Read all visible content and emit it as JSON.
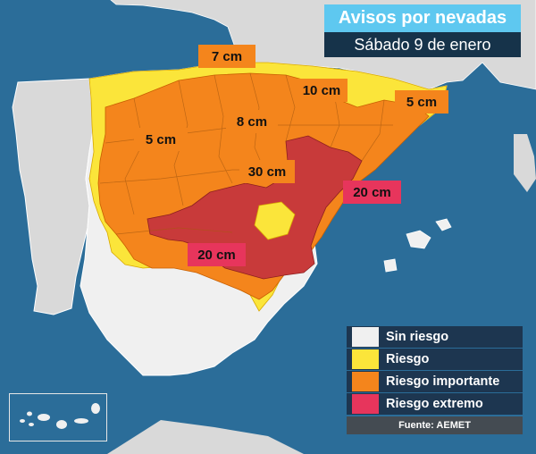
{
  "header": {
    "title": "Avisos por nevadas",
    "date": "Sábado 9 de enero"
  },
  "snow_labels": [
    {
      "text": "7 cm",
      "level": "orange"
    },
    {
      "text": "10 cm",
      "level": "orange"
    },
    {
      "text": "5 cm",
      "level": "orange"
    },
    {
      "text": "8 cm",
      "level": "orange"
    },
    {
      "text": "5 cm",
      "level": "orange"
    },
    {
      "text": "30 cm",
      "level": "orange"
    },
    {
      "text": "20 cm",
      "level": "pink"
    },
    {
      "text": "20 cm",
      "level": "pink"
    }
  ],
  "legend": {
    "items": [
      {
        "label": "Sin riesgo",
        "color": "#f0f0f0"
      },
      {
        "label": "Riesgo",
        "color": "#fbe53a"
      },
      {
        "label": "Riesgo importante",
        "color": "#f4851c"
      },
      {
        "label": "Riesgo extremo",
        "color": "#e7355c"
      }
    ],
    "source": "Fuente: AEMET"
  },
  "colors": {
    "sea": "#2b6d99",
    "land_other": "#d9d9d9",
    "no_risk": "#f0f0f0",
    "yellow": "#fbe53a",
    "orange": "#f4851c",
    "red": "#c83a3a",
    "pink": "#e7355c"
  },
  "icons": [
    "canary-islands-inset-icon"
  ]
}
